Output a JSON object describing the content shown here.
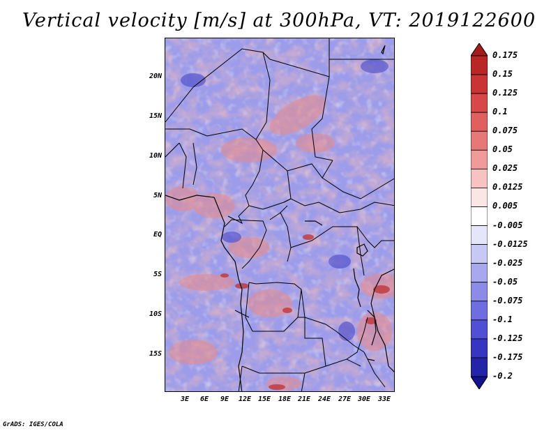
{
  "title": "Vertical velocity [m/s] at 300hPa, VT: 2019122600",
  "credit": "GrADS: IGES/COLA",
  "map": {
    "variable": "Vertical velocity",
    "units": "m/s",
    "level": "300hPa",
    "valid_time": "2019122600",
    "lat_labels": [
      "20N",
      "15N",
      "10N",
      "5N",
      "EQ",
      "5S",
      "10S",
      "15S"
    ],
    "lon_labels": [
      "3E",
      "6E",
      "9E",
      "12E",
      "15E",
      "18E",
      "21E",
      "24E",
      "27E",
      "30E",
      "33E"
    ],
    "lat_range": [
      -19.5,
      25
    ],
    "lon_range": [
      0,
      34.5
    ],
    "background_color": "#8c8ce8"
  },
  "colorbar": {
    "labels": [
      "0.175",
      "0.15",
      "0.125",
      "0.1",
      "0.075",
      "0.05",
      "0.025",
      "0.0125",
      "0.005",
      "-0.005",
      "-0.0125",
      "-0.025",
      "-0.05",
      "-0.075",
      "-0.1",
      "-0.125",
      "-0.175",
      "-0.2"
    ],
    "colors": [
      "#a51c1c",
      "#b82626",
      "#c93434",
      "#d84848",
      "#e06060",
      "#e87878",
      "#f09a9a",
      "#f7c2c2",
      "#fbe6e6",
      "#ffffff",
      "#e6e6fa",
      "#c8c8f5",
      "#a8a8ef",
      "#8c8ce8",
      "#6e6ee0",
      "#5050d4",
      "#3636c0",
      "#2424a8",
      "#12128c"
    ]
  }
}
